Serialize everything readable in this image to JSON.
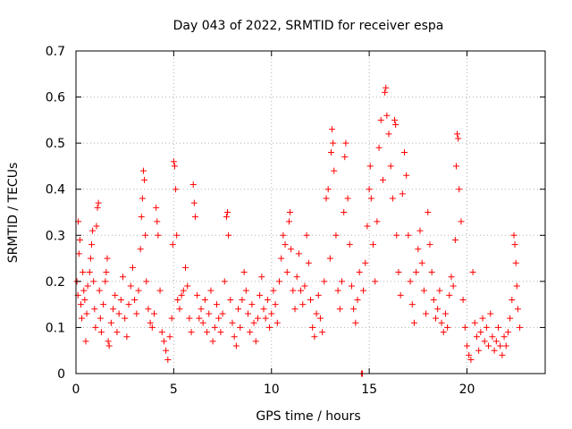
{
  "chart_data": {
    "type": "scatter",
    "title": "Day 043 of 2022, SRMTID for receiver espa",
    "xlabel": "GPS time / hours",
    "ylabel": "SRMTID / TECUs",
    "xlim": [
      0,
      24
    ],
    "ylim": [
      0,
      0.7
    ],
    "xticks": [
      {
        "v": 0,
        "label": "0"
      },
      {
        "v": 5,
        "label": "5"
      },
      {
        "v": 10,
        "label": "10"
      },
      {
        "v": 15,
        "label": "15"
      },
      {
        "v": 20,
        "label": "20"
      }
    ],
    "yticks": [
      {
        "v": 0,
        "label": "0"
      },
      {
        "v": 0.1,
        "label": "0.1"
      },
      {
        "v": 0.2,
        "label": "0.2"
      },
      {
        "v": 0.3,
        "label": "0.3"
      },
      {
        "v": 0.4,
        "label": "0.4"
      },
      {
        "v": 0.5,
        "label": "0.5"
      },
      {
        "v": 0.6,
        "label": "0.6"
      },
      {
        "v": 0.7,
        "label": "0.7"
      }
    ],
    "grid": true,
    "marker": "+",
    "color": "#ff0000",
    "series": [
      {
        "name": "SRMTID",
        "points": [
          [
            0.05,
            0.2
          ],
          [
            0.1,
            0.17
          ],
          [
            0.12,
            0.33
          ],
          [
            0.15,
            0.26
          ],
          [
            0.2,
            0.29
          ],
          [
            0.25,
            0.15
          ],
          [
            0.3,
            0.12
          ],
          [
            0.35,
            0.22
          ],
          [
            0.4,
            0.18
          ],
          [
            0.45,
            0.16
          ],
          [
            0.5,
            0.07
          ],
          [
            0.55,
            0.13
          ],
          [
            0.6,
            0.19
          ],
          [
            0.7,
            0.22
          ],
          [
            0.75,
            0.25
          ],
          [
            0.8,
            0.28
          ],
          [
            0.85,
            0.31
          ],
          [
            0.9,
            0.2
          ],
          [
            0.95,
            0.14
          ],
          [
            1.0,
            0.1
          ],
          [
            1.05,
            0.32
          ],
          [
            1.1,
            0.36
          ],
          [
            1.15,
            0.37
          ],
          [
            1.2,
            0.18
          ],
          [
            1.25,
            0.12
          ],
          [
            1.3,
            0.09
          ],
          [
            1.4,
            0.15
          ],
          [
            1.5,
            0.2
          ],
          [
            1.55,
            0.22
          ],
          [
            1.6,
            0.25
          ],
          [
            1.65,
            0.07
          ],
          [
            1.7,
            0.06
          ],
          [
            1.8,
            0.11
          ],
          [
            1.9,
            0.14
          ],
          [
            2.0,
            0.17
          ],
          [
            2.1,
            0.09
          ],
          [
            2.2,
            0.13
          ],
          [
            2.3,
            0.16
          ],
          [
            2.4,
            0.21
          ],
          [
            2.5,
            0.12
          ],
          [
            2.6,
            0.08
          ],
          [
            2.7,
            0.15
          ],
          [
            2.8,
            0.19
          ],
          [
            2.9,
            0.23
          ],
          [
            3.0,
            0.16
          ],
          [
            3.1,
            0.13
          ],
          [
            3.2,
            0.18
          ],
          [
            3.3,
            0.27
          ],
          [
            3.35,
            0.34
          ],
          [
            3.4,
            0.38
          ],
          [
            3.45,
            0.44
          ],
          [
            3.5,
            0.42
          ],
          [
            3.55,
            0.3
          ],
          [
            3.6,
            0.2
          ],
          [
            3.7,
            0.14
          ],
          [
            3.8,
            0.11
          ],
          [
            3.9,
            0.1
          ],
          [
            4.0,
            0.13
          ],
          [
            4.1,
            0.36
          ],
          [
            4.15,
            0.33
          ],
          [
            4.2,
            0.3
          ],
          [
            4.3,
            0.18
          ],
          [
            4.4,
            0.09
          ],
          [
            4.5,
            0.07
          ],
          [
            4.6,
            0.05
          ],
          [
            4.7,
            0.03
          ],
          [
            4.8,
            0.08
          ],
          [
            4.9,
            0.12
          ],
          [
            4.95,
            0.28
          ],
          [
            5.0,
            0.46
          ],
          [
            5.05,
            0.45
          ],
          [
            5.1,
            0.4
          ],
          [
            5.15,
            0.3
          ],
          [
            5.2,
            0.16
          ],
          [
            5.3,
            0.14
          ],
          [
            5.4,
            0.17
          ],
          [
            5.5,
            0.18
          ],
          [
            5.6,
            0.23
          ],
          [
            5.7,
            0.19
          ],
          [
            5.8,
            0.12
          ],
          [
            5.9,
            0.09
          ],
          [
            6.0,
            0.41
          ],
          [
            6.05,
            0.37
          ],
          [
            6.1,
            0.34
          ],
          [
            6.2,
            0.17
          ],
          [
            6.3,
            0.12
          ],
          [
            6.4,
            0.14
          ],
          [
            6.5,
            0.11
          ],
          [
            6.6,
            0.16
          ],
          [
            6.7,
            0.09
          ],
          [
            6.8,
            0.13
          ],
          [
            6.9,
            0.18
          ],
          [
            7.0,
            0.07
          ],
          [
            7.1,
            0.1
          ],
          [
            7.2,
            0.15
          ],
          [
            7.3,
            0.12
          ],
          [
            7.4,
            0.09
          ],
          [
            7.5,
            0.13
          ],
          [
            7.6,
            0.2
          ],
          [
            7.7,
            0.34
          ],
          [
            7.75,
            0.35
          ],
          [
            7.8,
            0.3
          ],
          [
            7.9,
            0.16
          ],
          [
            8.0,
            0.11
          ],
          [
            8.1,
            0.08
          ],
          [
            8.2,
            0.06
          ],
          [
            8.3,
            0.14
          ],
          [
            8.4,
            0.1
          ],
          [
            8.5,
            0.16
          ],
          [
            8.6,
            0.22
          ],
          [
            8.7,
            0.18
          ],
          [
            8.8,
            0.13
          ],
          [
            8.9,
            0.09
          ],
          [
            9.0,
            0.15
          ],
          [
            9.1,
            0.11
          ],
          [
            9.2,
            0.07
          ],
          [
            9.3,
            0.12
          ],
          [
            9.4,
            0.17
          ],
          [
            9.5,
            0.21
          ],
          [
            9.6,
            0.14
          ],
          [
            9.7,
            0.12
          ],
          [
            9.8,
            0.16
          ],
          [
            9.9,
            0.1
          ],
          [
            10.0,
            0.13
          ],
          [
            10.1,
            0.18
          ],
          [
            10.2,
            0.15
          ],
          [
            10.3,
            0.11
          ],
          [
            10.4,
            0.2
          ],
          [
            10.5,
            0.25
          ],
          [
            10.6,
            0.3
          ],
          [
            10.7,
            0.28
          ],
          [
            10.8,
            0.22
          ],
          [
            10.9,
            0.33
          ],
          [
            10.95,
            0.35
          ],
          [
            11.0,
            0.27
          ],
          [
            11.1,
            0.18
          ],
          [
            11.2,
            0.14
          ],
          [
            11.3,
            0.21
          ],
          [
            11.4,
            0.26
          ],
          [
            11.5,
            0.18
          ],
          [
            11.6,
            0.15
          ],
          [
            11.7,
            0.19
          ],
          [
            11.8,
            0.3
          ],
          [
            11.9,
            0.24
          ],
          [
            12.0,
            0.16
          ],
          [
            12.1,
            0.1
          ],
          [
            12.2,
            0.08
          ],
          [
            12.3,
            0.13
          ],
          [
            12.4,
            0.17
          ],
          [
            12.5,
            0.12
          ],
          [
            12.6,
            0.09
          ],
          [
            12.7,
            0.2
          ],
          [
            12.8,
            0.38
          ],
          [
            12.9,
            0.4
          ],
          [
            13.0,
            0.25
          ],
          [
            13.05,
            0.48
          ],
          [
            13.1,
            0.53
          ],
          [
            13.15,
            0.5
          ],
          [
            13.2,
            0.44
          ],
          [
            13.3,
            0.3
          ],
          [
            13.4,
            0.18
          ],
          [
            13.5,
            0.14
          ],
          [
            13.6,
            0.2
          ],
          [
            13.7,
            0.35
          ],
          [
            13.75,
            0.47
          ],
          [
            13.8,
            0.5
          ],
          [
            13.9,
            0.38
          ],
          [
            14.0,
            0.28
          ],
          [
            14.1,
            0.19
          ],
          [
            14.2,
            0.14
          ],
          [
            14.3,
            0.11
          ],
          [
            14.4,
            0.16
          ],
          [
            14.5,
            0.22
          ],
          [
            14.6,
            0.0
          ],
          [
            14.65,
            0.0
          ],
          [
            14.7,
            0.18
          ],
          [
            14.8,
            0.24
          ],
          [
            14.9,
            0.32
          ],
          [
            15.0,
            0.4
          ],
          [
            15.05,
            0.45
          ],
          [
            15.1,
            0.38
          ],
          [
            15.2,
            0.28
          ],
          [
            15.3,
            0.2
          ],
          [
            15.4,
            0.33
          ],
          [
            15.5,
            0.49
          ],
          [
            15.6,
            0.55
          ],
          [
            15.7,
            0.42
          ],
          [
            15.8,
            0.61
          ],
          [
            15.85,
            0.62
          ],
          [
            15.9,
            0.56
          ],
          [
            16.0,
            0.52
          ],
          [
            16.1,
            0.45
          ],
          [
            16.2,
            0.38
          ],
          [
            16.3,
            0.55
          ],
          [
            16.35,
            0.54
          ],
          [
            16.4,
            0.3
          ],
          [
            16.5,
            0.22
          ],
          [
            16.6,
            0.17
          ],
          [
            16.7,
            0.39
          ],
          [
            16.8,
            0.48
          ],
          [
            16.9,
            0.43
          ],
          [
            17.0,
            0.3
          ],
          [
            17.1,
            0.2
          ],
          [
            17.2,
            0.15
          ],
          [
            17.3,
            0.11
          ],
          [
            17.4,
            0.22
          ],
          [
            17.5,
            0.27
          ],
          [
            17.6,
            0.31
          ],
          [
            17.7,
            0.24
          ],
          [
            17.8,
            0.18
          ],
          [
            17.9,
            0.13
          ],
          [
            18.0,
            0.35
          ],
          [
            18.1,
            0.28
          ],
          [
            18.2,
            0.22
          ],
          [
            18.3,
            0.16
          ],
          [
            18.4,
            0.12
          ],
          [
            18.5,
            0.14
          ],
          [
            18.6,
            0.18
          ],
          [
            18.7,
            0.11
          ],
          [
            18.8,
            0.09
          ],
          [
            18.9,
            0.13
          ],
          [
            19.0,
            0.1
          ],
          [
            19.1,
            0.17
          ],
          [
            19.2,
            0.21
          ],
          [
            19.3,
            0.19
          ],
          [
            19.4,
            0.29
          ],
          [
            19.45,
            0.45
          ],
          [
            19.5,
            0.52
          ],
          [
            19.55,
            0.51
          ],
          [
            19.6,
            0.4
          ],
          [
            19.7,
            0.33
          ],
          [
            19.8,
            0.16
          ],
          [
            19.9,
            0.1
          ],
          [
            20.0,
            0.06
          ],
          [
            20.1,
            0.04
          ],
          [
            20.2,
            0.03
          ],
          [
            20.3,
            0.22
          ],
          [
            20.4,
            0.11
          ],
          [
            20.5,
            0.08
          ],
          [
            20.6,
            0.05
          ],
          [
            20.7,
            0.09
          ],
          [
            20.8,
            0.12
          ],
          [
            20.9,
            0.07
          ],
          [
            21.0,
            0.1
          ],
          [
            21.1,
            0.06
          ],
          [
            21.2,
            0.13
          ],
          [
            21.3,
            0.08
          ],
          [
            21.4,
            0.05
          ],
          [
            21.5,
            0.07
          ],
          [
            21.6,
            0.1
          ],
          [
            21.7,
            0.06
          ],
          [
            21.8,
            0.04
          ],
          [
            21.9,
            0.08
          ],
          [
            22.0,
            0.06
          ],
          [
            22.1,
            0.09
          ],
          [
            22.2,
            0.12
          ],
          [
            22.3,
            0.16
          ],
          [
            22.4,
            0.3
          ],
          [
            22.45,
            0.28
          ],
          [
            22.5,
            0.24
          ],
          [
            22.55,
            0.19
          ],
          [
            22.6,
            0.14
          ],
          [
            22.7,
            0.1
          ]
        ]
      }
    ]
  }
}
